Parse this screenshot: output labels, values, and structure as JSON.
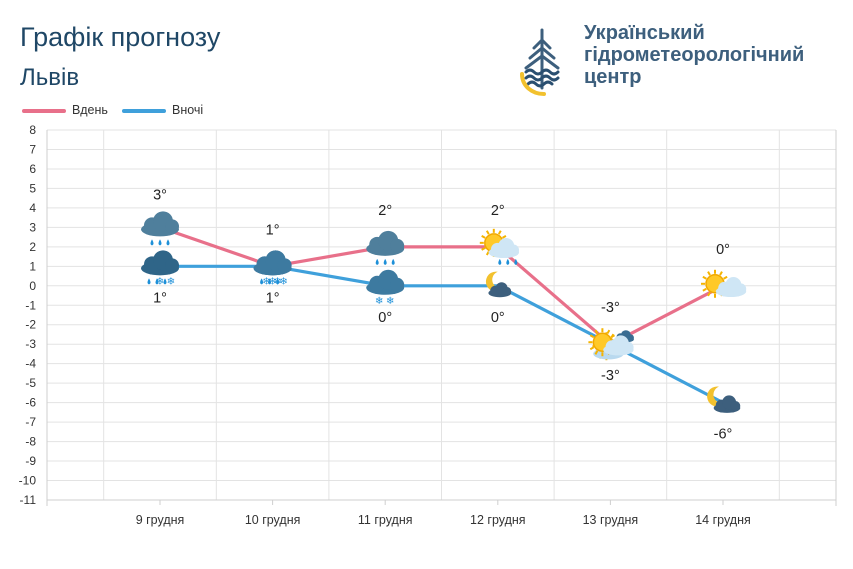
{
  "header": {
    "title": "Графік прогнозу",
    "city": "Львів"
  },
  "logo": {
    "line1": "Український",
    "line2": "гідрометеорологічний",
    "line3": "центр"
  },
  "colors": {
    "day": "#e8708a",
    "night": "#3fa0db",
    "grid": "#e3e3e3",
    "title": "#1f4766"
  },
  "legend": [
    {
      "label": "Вдень",
      "color": "#e8708a"
    },
    {
      "label": "Вночі",
      "color": "#3fa0db"
    }
  ],
  "chart_data": {
    "type": "line",
    "categories": [
      "9 грудня",
      "10 грудня",
      "11 грудня",
      "12 грудня",
      "13 грудня",
      "14 грудня"
    ],
    "series": [
      {
        "name": "Вдень",
        "values": [
          3,
          1,
          2,
          2,
          -3,
          0
        ],
        "labels": [
          "3°",
          "1°",
          "2°",
          "2°",
          "-3°",
          "0°"
        ],
        "icons": [
          "rain-cloud-icon",
          "rain-snow-cloud-icon",
          "rain-cloud-icon",
          "sun-cloud-rain-icon",
          "sun-cloud-snow-icon",
          "sun-cloud-icon"
        ]
      },
      {
        "name": "Вночі",
        "values": [
          1,
          1,
          0,
          0,
          -3,
          -6
        ],
        "labels": [
          "1°",
          "1°",
          "0°",
          "0°",
          "-3°",
          "-6°"
        ],
        "icons": [
          "rain-snow-cloud-icon",
          "snow-cloud-icon",
          "snow-cloud-icon",
          "moon-cloud-snow-icon",
          "sun-cloud-icon",
          "moon-cloud-icon"
        ]
      }
    ],
    "yticks": [
      8,
      7,
      6,
      5,
      4,
      3,
      2,
      1,
      0,
      -1,
      -2,
      -3,
      -4,
      -5,
      -6,
      -7,
      -8,
      -9,
      -10,
      -11
    ],
    "ylim": [
      -11,
      8
    ],
    "grid": true,
    "legend_position": "top-left"
  }
}
